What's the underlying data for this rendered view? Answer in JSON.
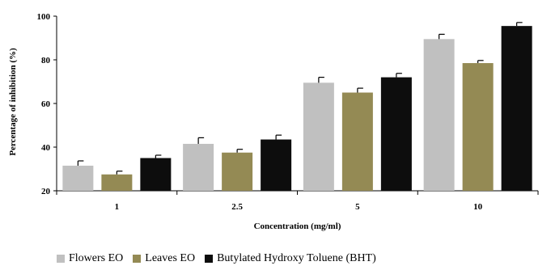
{
  "chart_data": {
    "type": "bar",
    "title": "",
    "xlabel": "Concentration (mg/ml)",
    "ylabel": "Percentage of inhibition (%)",
    "categories": [
      "1",
      "2.5",
      "5",
      "10"
    ],
    "ylim": [
      20,
      100
    ],
    "yticks": [
      20,
      40,
      60,
      80,
      100
    ],
    "grid": false,
    "legend_position": "bottom",
    "series": [
      {
        "name": "Flowers EO",
        "color": "#c0c0c0",
        "values": [
          31.5,
          41.5,
          69.5,
          89.5
        ],
        "errors": [
          2.2,
          2.8,
          2.5,
          2.2
        ]
      },
      {
        "name": "Leaves EO",
        "color": "#948a54",
        "values": [
          27.5,
          37.5,
          65.0,
          78.5
        ],
        "errors": [
          1.5,
          1.5,
          2.0,
          1.2
        ]
      },
      {
        "name": "Butylated Hydroxy Toluene (BHT)",
        "color": "#0d0d0d",
        "values": [
          35.0,
          43.5,
          72.0,
          95.5
        ],
        "errors": [
          1.3,
          2.0,
          1.8,
          1.6
        ]
      }
    ]
  }
}
